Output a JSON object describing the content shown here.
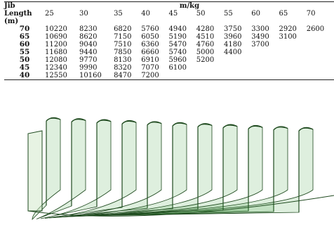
{
  "table": {
    "corner_label_lines": [
      "Jib",
      "Length",
      "(m)"
    ],
    "unit_header": "m/kg",
    "columns": [
      "25",
      "30",
      "35",
      "40",
      "45",
      "50",
      "55",
      "60",
      "65",
      "70"
    ],
    "rows": [
      {
        "length": "70",
        "values": [
          "10220",
          "8230",
          "6820",
          "5760",
          "4940",
          "4280",
          "3750",
          "3300",
          "2920",
          "2600"
        ]
      },
      {
        "length": "65",
        "values": [
          "10690",
          "8620",
          "7150",
          "6050",
          "5190",
          "4510",
          "3960",
          "3490",
          "3100",
          ""
        ]
      },
      {
        "length": "60",
        "values": [
          "11200",
          "9040",
          "7510",
          "6360",
          "5470",
          "4760",
          "4180",
          "3700",
          "",
          ""
        ]
      },
      {
        "length": "55",
        "values": [
          "11680",
          "9440",
          "7850",
          "6660",
          "5740",
          "5000",
          "4400",
          "",
          "",
          ""
        ]
      },
      {
        "length": "50",
        "values": [
          "12080",
          "9770",
          "8130",
          "6910",
          "5960",
          "5200",
          "",
          "",
          "",
          ""
        ]
      },
      {
        "length": "45",
        "values": [
          "12340",
          "9990",
          "8320",
          "7070",
          "6100",
          "",
          "",
          "",
          "",
          ""
        ]
      },
      {
        "length": "40",
        "values": [
          "12550",
          "10160",
          "8470",
          "7200",
          "",
          "",
          "",
          "",
          "",
          ""
        ]
      }
    ]
  },
  "figure": {
    "shell_count": 11,
    "colors": {
      "fill": "#2f9a2f",
      "stroke": "#1f4a1f",
      "light": "#cfe8c8"
    }
  }
}
